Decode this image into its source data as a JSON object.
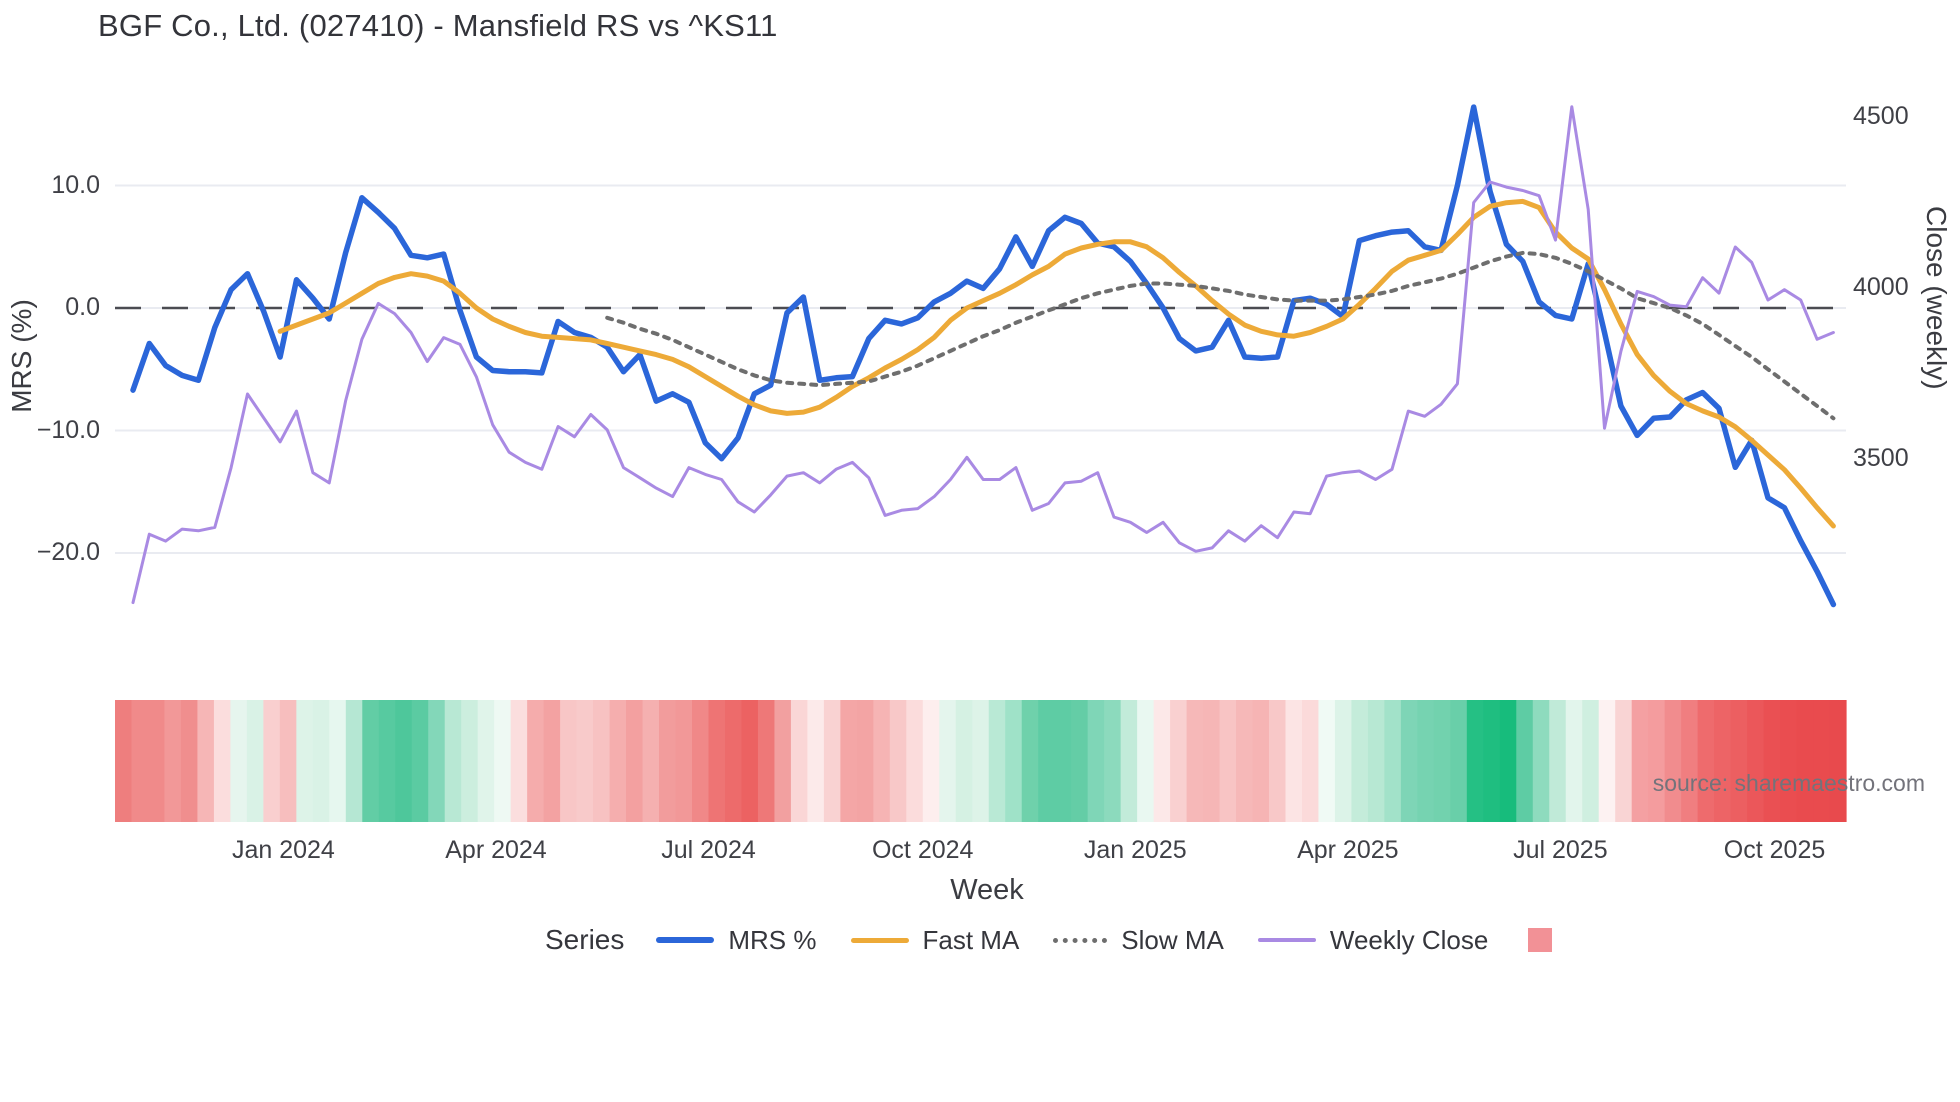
{
  "page_title": "BGF Co., Ltd. (027410) - Mansfield RS vs ^KS11",
  "source_note": "source: sharemaestro.com",
  "colors": {
    "mrs_blue": "#2b66d9",
    "fast_ma_orange": "#edaa38",
    "slow_ma_gray": "#6e6e6e",
    "weekly_close_purple": "#a98ae3",
    "zero_dash": "#4b4c52",
    "gridline": "#e9ebf1",
    "legend_square_red": "#f29196",
    "heat_strong_green": "#17bc7c",
    "heat_strong_red": "#e84a4d"
  },
  "chart_data": {
    "type": "line",
    "title": "BGF Co., Ltd. (027410) - Mansfield RS vs ^KS11",
    "xlabel": "Week",
    "x_ticks": [
      {
        "label": "Jan 2024",
        "week": 9.2
      },
      {
        "label": "Apr 2024",
        "week": 22.2
      },
      {
        "label": "Jul 2024",
        "week": 35.2
      },
      {
        "label": "Oct 2024",
        "week": 48.3
      },
      {
        "label": "Jan 2025",
        "week": 61.3
      },
      {
        "label": "Apr 2025",
        "week": 74.3
      },
      {
        "label": "Jul 2025",
        "week": 87.3
      },
      {
        "label": "Oct 2025",
        "week": 100.4
      }
    ],
    "y_axis_left": {
      "label": "MRS (%)",
      "ticks": [
        {
          "label": "10.0",
          "value": 10
        },
        {
          "label": "0.0",
          "value": 0
        },
        {
          "label": "−10.0",
          "value": -10
        },
        {
          "label": "−20.0",
          "value": -20
        }
      ],
      "range": [
        -26.5,
        18.6
      ],
      "zero_line": 0
    },
    "y_axis_right": {
      "label": "Close (weekly)",
      "ticks": [
        {
          "label": "4500",
          "value": 4500
        },
        {
          "label": "4000",
          "value": 4000
        },
        {
          "label": "3500",
          "value": 3500
        }
      ],
      "range": [
        3040,
        4610
      ]
    },
    "legend": {
      "title": "Series",
      "items": [
        "MRS %",
        "Fast MA",
        "Slow MA",
        "Weekly Close"
      ],
      "extra_swatch_color": "#f29196"
    },
    "series": [
      {
        "name": "MRS %",
        "axis": "left",
        "style": "solid",
        "width": 5.5,
        "color": "#2b66d9",
        "values": [
          -6.7,
          -2.9,
          -4.7,
          -5.5,
          -5.9,
          -1.6,
          1.5,
          2.8,
          -0.3,
          -4.0,
          2.3,
          0.8,
          -0.9,
          4.5,
          9.0,
          7.8,
          6.5,
          4.3,
          4.1,
          4.4,
          -0.2,
          -4.0,
          -5.1,
          -5.2,
          -5.2,
          -5.3,
          -1.1,
          -2.0,
          -2.4,
          -3.2,
          -5.2,
          -3.8,
          -7.6,
          -7.0,
          -7.7,
          -11.0,
          -12.3,
          -10.6,
          -7.0,
          -6.3,
          -0.4,
          0.9,
          -5.9,
          -5.7,
          -5.6,
          -2.5,
          -1.0,
          -1.3,
          -0.8,
          0.5,
          1.2,
          2.2,
          1.6,
          3.2,
          5.8,
          3.4,
          6.3,
          7.4,
          6.9,
          5.3,
          5.0,
          3.8,
          2.0,
          0.0,
          -2.5,
          -3.5,
          -3.2,
          -1.0,
          -4.0,
          -4.1,
          -4.0,
          0.6,
          0.8,
          0.3,
          -0.7,
          5.5,
          5.9,
          6.2,
          6.3,
          5.0,
          4.7,
          10.0,
          16.4,
          9.5,
          5.2,
          3.8,
          0.5,
          -0.6,
          -0.9,
          3.6,
          -2.0,
          -8.0,
          -10.4,
          -9.0,
          -8.9,
          -7.5,
          -6.9,
          -8.2,
          -13.0,
          -10.8,
          -15.5,
          -16.3,
          -19.0,
          -21.5,
          -24.2
        ]
      },
      {
        "name": "Fast MA",
        "axis": "left",
        "style": "solid",
        "width": 5,
        "color": "#edaa38",
        "values": [
          null,
          null,
          null,
          null,
          null,
          null,
          null,
          null,
          null,
          -1.9,
          -1.4,
          -0.9,
          -0.4,
          0.4,
          1.2,
          2.0,
          2.5,
          2.8,
          2.6,
          2.2,
          1.2,
          0.0,
          -0.9,
          -1.5,
          -2.0,
          -2.3,
          -2.4,
          -2.5,
          -2.6,
          -2.9,
          -3.2,
          -3.5,
          -3.8,
          -4.2,
          -4.8,
          -5.6,
          -6.4,
          -7.2,
          -7.9,
          -8.4,
          -8.6,
          -8.5,
          -8.1,
          -7.3,
          -6.4,
          -5.7,
          -4.9,
          -4.2,
          -3.4,
          -2.4,
          -1.0,
          0.0,
          0.6,
          1.2,
          1.9,
          2.7,
          3.4,
          4.4,
          4.9,
          5.2,
          5.4,
          5.4,
          5.0,
          4.1,
          2.9,
          1.8,
          0.6,
          -0.5,
          -1.4,
          -1.9,
          -2.2,
          -2.3,
          -2.0,
          -1.5,
          -0.9,
          0.3,
          1.6,
          3.0,
          3.9,
          4.3,
          4.7,
          6.0,
          7.4,
          8.3,
          8.6,
          8.7,
          8.2,
          6.2,
          4.9,
          4.0,
          1.5,
          -1.3,
          -3.8,
          -5.5,
          -6.8,
          -7.8,
          -8.4,
          -8.9,
          -9.7,
          -10.8,
          -12.0,
          -13.2,
          -14.7,
          -16.3,
          -17.8
        ]
      },
      {
        "name": "Slow MA",
        "axis": "left",
        "style": "dotted",
        "width": 4,
        "color": "#6e6e6e",
        "values": [
          null,
          null,
          null,
          null,
          null,
          null,
          null,
          null,
          null,
          null,
          null,
          null,
          null,
          null,
          null,
          null,
          null,
          null,
          null,
          null,
          null,
          null,
          null,
          null,
          null,
          null,
          null,
          null,
          null,
          -0.8,
          -1.2,
          -1.7,
          -2.1,
          -2.6,
          -3.2,
          -3.8,
          -4.4,
          -5.0,
          -5.5,
          -5.9,
          -6.1,
          -6.2,
          -6.3,
          -6.2,
          -6.1,
          -6.0,
          -5.6,
          -5.2,
          -4.7,
          -4.1,
          -3.5,
          -2.9,
          -2.3,
          -1.8,
          -1.2,
          -0.7,
          -0.2,
          0.3,
          0.8,
          1.2,
          1.5,
          1.8,
          2.0,
          2.0,
          1.9,
          1.8,
          1.6,
          1.4,
          1.1,
          0.9,
          0.7,
          0.6,
          0.6,
          0.6,
          0.7,
          0.9,
          1.1,
          1.4,
          1.8,
          2.1,
          2.4,
          2.8,
          3.3,
          3.8,
          4.2,
          4.5,
          4.4,
          4.1,
          3.6,
          3.0,
          2.3,
          1.6,
          0.8,
          0.4,
          0.0,
          -0.6,
          -1.3,
          -2.2,
          -3.1,
          -4.0,
          -5.0,
          -6.0,
          -7.0,
          -8.0,
          -9.0
        ]
      },
      {
        "name": "Weekly Close",
        "axis": "right",
        "style": "solid",
        "width": 3,
        "color": "#a98ae3",
        "values": [
          3080,
          3280,
          3260,
          3295,
          3290,
          3300,
          3475,
          3690,
          3620,
          3550,
          3640,
          3460,
          3430,
          3670,
          3850,
          3955,
          3925,
          3870,
          3785,
          3855,
          3835,
          3740,
          3600,
          3520,
          3490,
          3470,
          3595,
          3565,
          3630,
          3585,
          3475,
          3445,
          3415,
          3390,
          3475,
          3455,
          3440,
          3375,
          3345,
          3395,
          3450,
          3460,
          3430,
          3470,
          3490,
          3445,
          3335,
          3350,
          3355,
          3390,
          3440,
          3505,
          3440,
          3440,
          3475,
          3350,
          3370,
          3430,
          3435,
          3460,
          3330,
          3315,
          3285,
          3315,
          3255,
          3230,
          3240,
          3290,
          3260,
          3305,
          3270,
          3345,
          3340,
          3450,
          3460,
          3465,
          3440,
          3470,
          3640,
          3625,
          3660,
          3720,
          4250,
          4310,
          4295,
          4285,
          4270,
          4140,
          4530,
          4230,
          3590,
          3815,
          3990,
          3975,
          3950,
          3945,
          4030,
          3985,
          4120,
          4075,
          3965,
          3995,
          3965,
          3850,
          3870
        ]
      }
    ],
    "heatmap": {
      "label": "weekly heat strip",
      "colors": [
        "#ee7e7e",
        "#f08a8a",
        "#f08a8a",
        "#f29898",
        "#f08e8e",
        "#f6b6b6",
        "#fbdddd",
        "#e6f5ee",
        "#d9f2e6",
        "#f9cfcf",
        "#f7bebe",
        "#ddf3e8",
        "#d9f2e6",
        "#e6f7ef",
        "#b5e7d3",
        "#62cda5",
        "#57caa0",
        "#4ec79b",
        "#5bcba2",
        "#83d7b9",
        "#b8e8d4",
        "#cceede",
        "#e0f4ea",
        "#eef9f3",
        "#fbdede",
        "#f5acac",
        "#f3a2a2",
        "#f8c6c6",
        "#f8caca",
        "#f7c2c2",
        "#f5aeae",
        "#f3a0a0",
        "#f5b0b0",
        "#f29c9c",
        "#f29898",
        "#f08888",
        "#ee7474",
        "#ed6b6b",
        "#ec6262",
        "#ee7878",
        "#f2a0a0",
        "#fad6d6",
        "#fceaea",
        "#f9d2d2",
        "#f4a6a6",
        "#f3a4a4",
        "#f6b4b4",
        "#f8c8c8",
        "#fbdcdc",
        "#fdeeee",
        "#e4f5ed",
        "#d5f1e3",
        "#ddf3e8",
        "#b9e9d5",
        "#9fe2c8",
        "#6fd1ab",
        "#5ecca4",
        "#5ecca4",
        "#64cda6",
        "#7fd6b7",
        "#8cdabd",
        "#c2ebd9",
        "#e9f8f1",
        "#fce8e8",
        "#f9d0d0",
        "#f6b8b8",
        "#f6b6b6",
        "#f8c4c4",
        "#f6b8b8",
        "#f6b4b4",
        "#f8c8c8",
        "#fce4e4",
        "#fbdada",
        "#f0faf5",
        "#dcf3e8",
        "#c4ecda",
        "#b7e8d3",
        "#a2e2c9",
        "#7ed5b6",
        "#76d3b1",
        "#72d2ae",
        "#69cfa9",
        "#25c084",
        "#1fbe80",
        "#17bc7c",
        "#5ecca4",
        "#8edbbe",
        "#c0ead8",
        "#e2f5ec",
        "#cfefe0",
        "#fdf2f2",
        "#f9d4d4",
        "#f4a0a2",
        "#f49c9e",
        "#f18c8e",
        "#f07e80",
        "#ee6b6d",
        "#ed6466",
        "#ec5f61",
        "#eb575a",
        "#ea5053",
        "#ea4d50",
        "#e94b4e",
        "#e94b4e",
        "#e84a4d"
      ]
    }
  }
}
